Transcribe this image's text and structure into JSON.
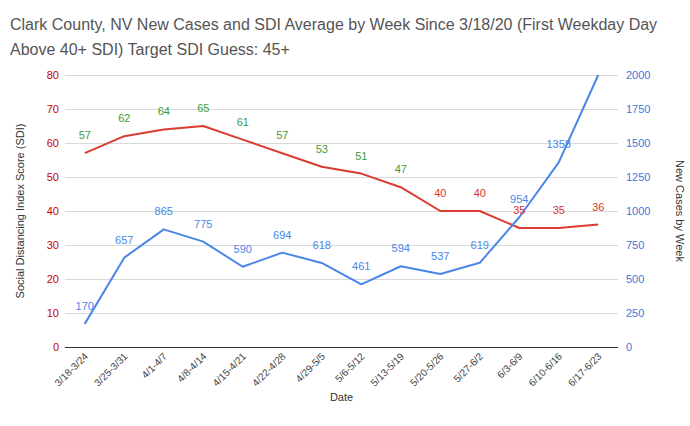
{
  "chart_data": {
    "type": "line",
    "title": "Clark County, NV New Cases and SDI Average by Week Since 3/18/20 (First Weekday Day Above 40+ SDI) Target SDI Guess: 45+",
    "x_label": "Date",
    "y_label": "Social Distancing Index Score (SDI)",
    "y2_label": "New Cases by Week",
    "categories": [
      "3/18-3/24",
      "3/25-3/31",
      "4/1-4/7",
      "4/8-4/14",
      "4/15-4/21",
      "4/22-4/28",
      "4/29-5/5",
      "5/6-5/12",
      "5/13-5/19",
      "5/20-5/26",
      "5/27-6/2",
      "6/3-6/9",
      "6/10-6/16",
      "6/17-6/23"
    ],
    "series": [
      {
        "color": "#dc3b2f",
        "colors": [
          "#3c9b3c",
          "#3c9b3c",
          "#3c9b3c",
          "#3c9b3c",
          "#3c9b3c",
          "#3c9b3c",
          "#3c9b3c",
          "#3c9b3c",
          "#3c9b3c",
          "#d9342b",
          "#d9342b",
          "#d9342b",
          "#d9342b",
          "#d9342b"
        ],
        "values": [
          57,
          62,
          64,
          65,
          61,
          57,
          53,
          51,
          47,
          40,
          40,
          35,
          35,
          36
        ]
      },
      {
        "color": "#4a86e8",
        "axis": "y2",
        "values": [
          170,
          657,
          865,
          775,
          590,
          694,
          618,
          461,
          594,
          537,
          619,
          954,
          1358,
          2000
        ],
        "value_labels": [
          "170",
          "657",
          "865",
          "775",
          "590",
          "694",
          "618",
          "461",
          "594",
          "537",
          "619",
          "954",
          "1358",
          null
        ]
      }
    ],
    "ylim": [
      0,
      80
    ],
    "yticks": [
      0,
      10,
      20,
      30,
      40,
      50,
      60,
      70,
      80
    ],
    "y2lim": [
      0,
      2000
    ],
    "y2ticks": [
      0,
      250,
      500,
      750,
      1000,
      1250,
      1500,
      1750,
      2000
    ],
    "grid": true,
    "data_labels": true
  }
}
